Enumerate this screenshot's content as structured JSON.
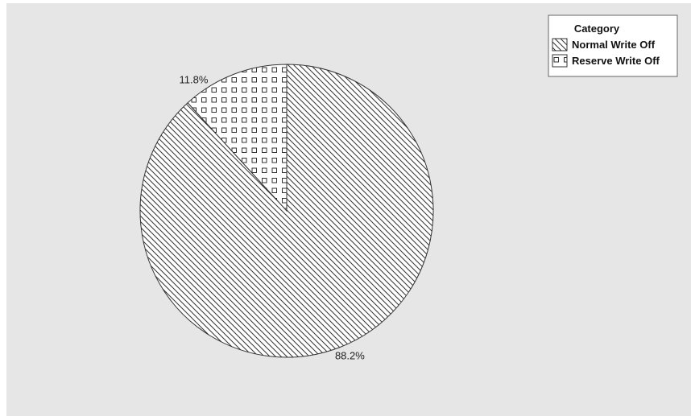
{
  "chart_data": {
    "type": "pie",
    "title": "",
    "legend": {
      "title": "Category",
      "position": "top-right"
    },
    "slices": [
      {
        "label": "Normal Write Off",
        "value": 88.2,
        "value_label": "88.2%",
        "pattern": "diagonal-hatch"
      },
      {
        "label": "Reserve Write Off",
        "value": 11.8,
        "value_label": "11.8%",
        "pattern": "square-grid"
      }
    ],
    "start_angle": "12 o'clock",
    "direction": "clockwise"
  },
  "colors": {
    "plot_background": "#e6e6e6",
    "slice_fill": "#ffffff",
    "line": "#333333"
  }
}
